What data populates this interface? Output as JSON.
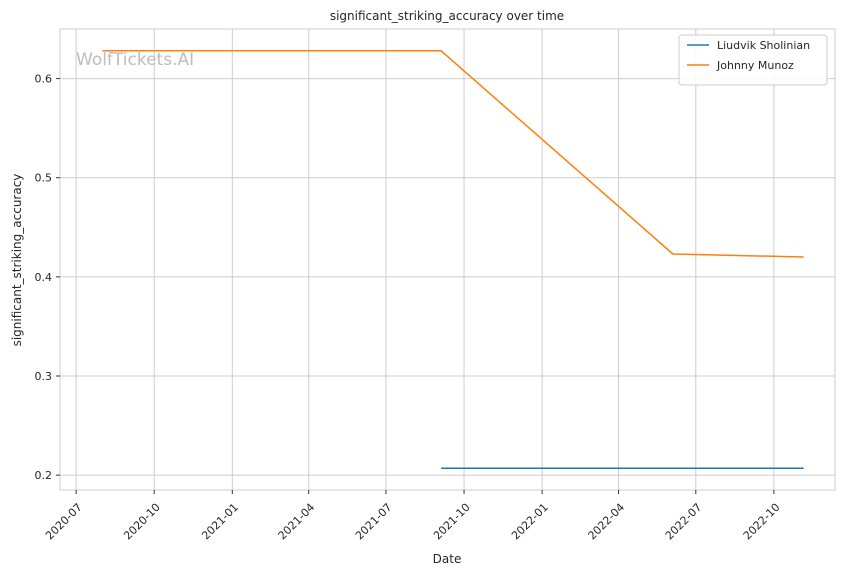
{
  "chart_data": {
    "type": "line",
    "title": "significant_striking_accuracy over time",
    "xlabel": "Date",
    "ylabel": "significant_striking_accuracy",
    "watermark": "WolfTickets.AI",
    "x_axis": {
      "kind": "date",
      "range": [
        "2020-06-12",
        "2022-12-12"
      ],
      "ticks": [
        "2020-07-01",
        "2020-10-01",
        "2021-01-01",
        "2021-04-01",
        "2021-07-01",
        "2021-10-01",
        "2022-01-01",
        "2022-04-01",
        "2022-07-01",
        "2022-10-01"
      ],
      "tick_labels": [
        "2020-07",
        "2020-10",
        "2021-01",
        "2021-04",
        "2021-07",
        "2021-10",
        "2022-01",
        "2022-04",
        "2022-07",
        "2022-10"
      ]
    },
    "y_axis": {
      "range": [
        0.185,
        0.65
      ],
      "ticks": [
        0.2,
        0.3,
        0.4,
        0.5,
        0.6
      ],
      "tick_labels": [
        "0.2",
        "0.3",
        "0.4",
        "0.5",
        "0.6"
      ]
    },
    "grid": true,
    "legend_position": "top-right",
    "series": [
      {
        "name": "Liudvik Sholinian",
        "color": "#1f77b4",
        "points": [
          {
            "x": "2021-09-04",
            "y": 0.207
          },
          {
            "x": "2022-11-05",
            "y": 0.207
          }
        ]
      },
      {
        "name": "Johnny Munoz",
        "color": "#ff7f0e",
        "points": [
          {
            "x": "2020-08-01",
            "y": 0.628
          },
          {
            "x": "2021-09-04",
            "y": 0.628
          },
          {
            "x": "2022-06-04",
            "y": 0.423
          },
          {
            "x": "2022-11-05",
            "y": 0.42
          }
        ]
      }
    ]
  }
}
